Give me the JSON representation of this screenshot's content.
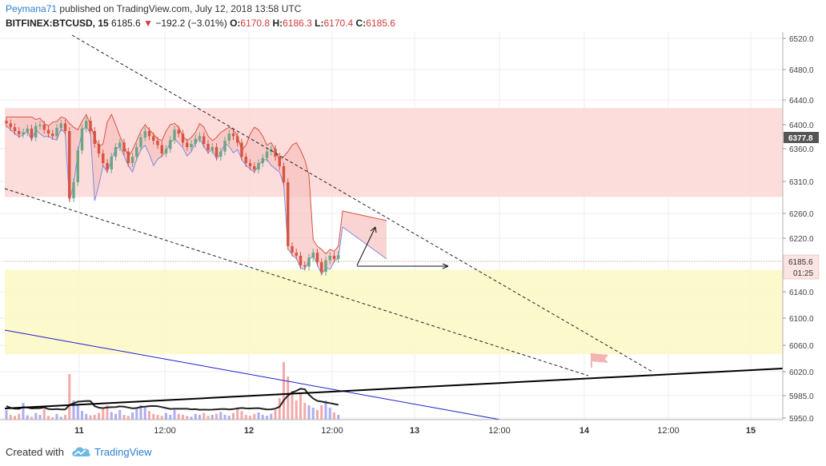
{
  "header": {
    "author": "Peymana71",
    "published_text": "published on TradingView.com, July 12, 2018 13:58 UTC",
    "symbol": "BITFINEX:BTCUSD, 15",
    "last": "6185.6",
    "change": "−192.2 (−3.01%)",
    "o_label": "O:",
    "o_value": "6170.8",
    "h_label": "H:",
    "h_value": "6186.3",
    "l_label": "L:",
    "l_value": "6170.4",
    "c_label": "C:",
    "c_value": "6185.6"
  },
  "footer": {
    "created_with": "Created with",
    "brand": "TradingView"
  },
  "colors": {
    "bull": "#6ba583",
    "bear": "#d75442",
    "cloud": "#f8c0c0",
    "zone_red": "#fcd7d5",
    "zone_yellow": "#fcf8c8",
    "trendline": "#1f1fcc",
    "support": "#000000",
    "price_tag": "#555555"
  },
  "chart_data": {
    "type": "candlestick",
    "y_axis": {
      "ticks": [
        "6520.0",
        "6480.0",
        "6440.0",
        "6400.0",
        "6360.0",
        "6310.0",
        "6260.0",
        "6220.0",
        "6185.6",
        "6140.0",
        "6100.0",
        "6060.0",
        "6020.0",
        "5985.0",
        "5950.0"
      ],
      "current_price_label": "6377.8",
      "last_price_label": "6185.6",
      "countdown_label": "01:25"
    },
    "x_axis": {
      "ticks": [
        "11",
        "12:00",
        "12",
        "12:00",
        "13",
        "12:00",
        "14",
        "12:00",
        "15"
      ]
    },
    "close_prices": [
      6392,
      6386,
      6380,
      6375,
      6378,
      6384,
      6370,
      6388,
      6390,
      6382,
      6376,
      6372,
      6385,
      6392,
      6380,
      6275,
      6300,
      6350,
      6384,
      6396,
      6380,
      6360,
      6345,
      6330,
      6320,
      6340,
      6355,
      6362,
      6348,
      6330,
      6340,
      6355,
      6370,
      6380,
      6372,
      6365,
      6358,
      6345,
      6352,
      6366,
      6382,
      6376,
      6362,
      6355,
      6360,
      6368,
      6372,
      6360,
      6350,
      6355,
      6340,
      6348,
      6365,
      6376,
      6372,
      6362,
      6340,
      6330,
      6325,
      6320,
      6330,
      6338,
      6348,
      6352,
      6340,
      6325,
      6300,
      6200,
      6190,
      6185,
      6170,
      6168,
      6182,
      6190,
      6175,
      6160,
      6178,
      6185,
      6180,
      6186
    ],
    "volume": [
      20,
      10,
      8,
      12,
      35,
      9,
      6,
      14,
      10,
      22,
      8,
      5,
      12,
      6,
      10,
      95,
      40,
      30,
      18,
      12,
      9,
      10,
      14,
      22,
      30,
      16,
      12,
      20,
      10,
      8,
      15,
      22,
      30,
      25,
      18,
      12,
      10,
      8,
      14,
      10,
      20,
      12,
      10,
      8,
      6,
      12,
      10,
      14,
      8,
      10,
      12,
      16,
      10,
      8,
      14,
      22,
      18,
      10,
      8,
      12,
      15,
      10,
      8,
      12,
      20,
      45,
      120,
      90,
      60,
      40,
      55,
      35,
      30,
      25,
      20,
      30,
      40,
      25,
      15,
      10
    ],
    "zones": [
      {
        "name": "supply",
        "from": 6277,
        "to": 6416
      },
      {
        "name": "demand",
        "from": 6031,
        "to": 6163
      }
    ]
  }
}
